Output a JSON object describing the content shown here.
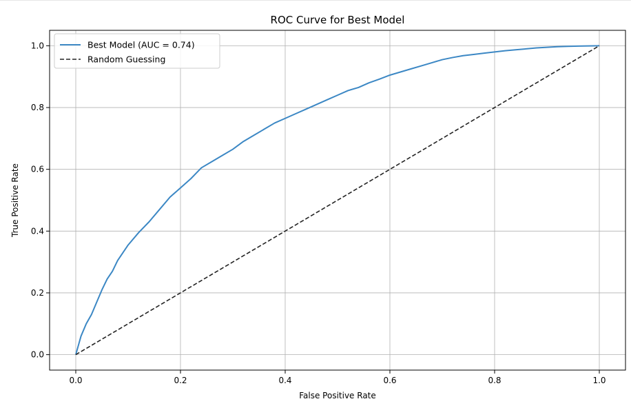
{
  "chart_data": {
    "type": "line",
    "title": "ROC Curve for Best Model",
    "xlabel": "False Positive Rate",
    "ylabel": "True Positive Rate",
    "xlim": [
      -0.05,
      1.05
    ],
    "ylim": [
      -0.05,
      1.05
    ],
    "xticks": [
      "0.0",
      "0.2",
      "0.4",
      "0.6",
      "0.8",
      "1.0"
    ],
    "yticks": [
      "0.0",
      "0.2",
      "0.4",
      "0.6",
      "0.8",
      "1.0"
    ],
    "grid": true,
    "legend_position": "top-left",
    "series": [
      {
        "name": "Best Model (AUC = 0.74)",
        "color": "#3b87c4",
        "style": "solid",
        "x": [
          0.0,
          0.005,
          0.01,
          0.02,
          0.03,
          0.04,
          0.05,
          0.06,
          0.07,
          0.08,
          0.09,
          0.1,
          0.12,
          0.14,
          0.16,
          0.18,
          0.2,
          0.22,
          0.24,
          0.26,
          0.28,
          0.3,
          0.32,
          0.34,
          0.36,
          0.38,
          0.4,
          0.42,
          0.44,
          0.46,
          0.48,
          0.5,
          0.52,
          0.54,
          0.56,
          0.58,
          0.6,
          0.62,
          0.64,
          0.66,
          0.68,
          0.7,
          0.72,
          0.74,
          0.76,
          0.78,
          0.8,
          0.82,
          0.84,
          0.86,
          0.88,
          0.9,
          0.92,
          0.94,
          0.96,
          0.98,
          1.0
        ],
        "y": [
          0.0,
          0.03,
          0.06,
          0.1,
          0.13,
          0.17,
          0.21,
          0.245,
          0.27,
          0.305,
          0.33,
          0.355,
          0.395,
          0.43,
          0.47,
          0.51,
          0.54,
          0.57,
          0.605,
          0.625,
          0.645,
          0.665,
          0.69,
          0.71,
          0.73,
          0.75,
          0.765,
          0.78,
          0.795,
          0.81,
          0.825,
          0.84,
          0.855,
          0.865,
          0.88,
          0.892,
          0.905,
          0.915,
          0.925,
          0.935,
          0.945,
          0.955,
          0.962,
          0.968,
          0.972,
          0.976,
          0.98,
          0.984,
          0.987,
          0.99,
          0.993,
          0.995,
          0.997,
          0.998,
          0.999,
          0.9995,
          1.0
        ]
      },
      {
        "name": "Random Guessing",
        "color": "#222222",
        "style": "dashed",
        "x": [
          0.0,
          1.0
        ],
        "y": [
          0.0,
          1.0
        ]
      }
    ]
  }
}
